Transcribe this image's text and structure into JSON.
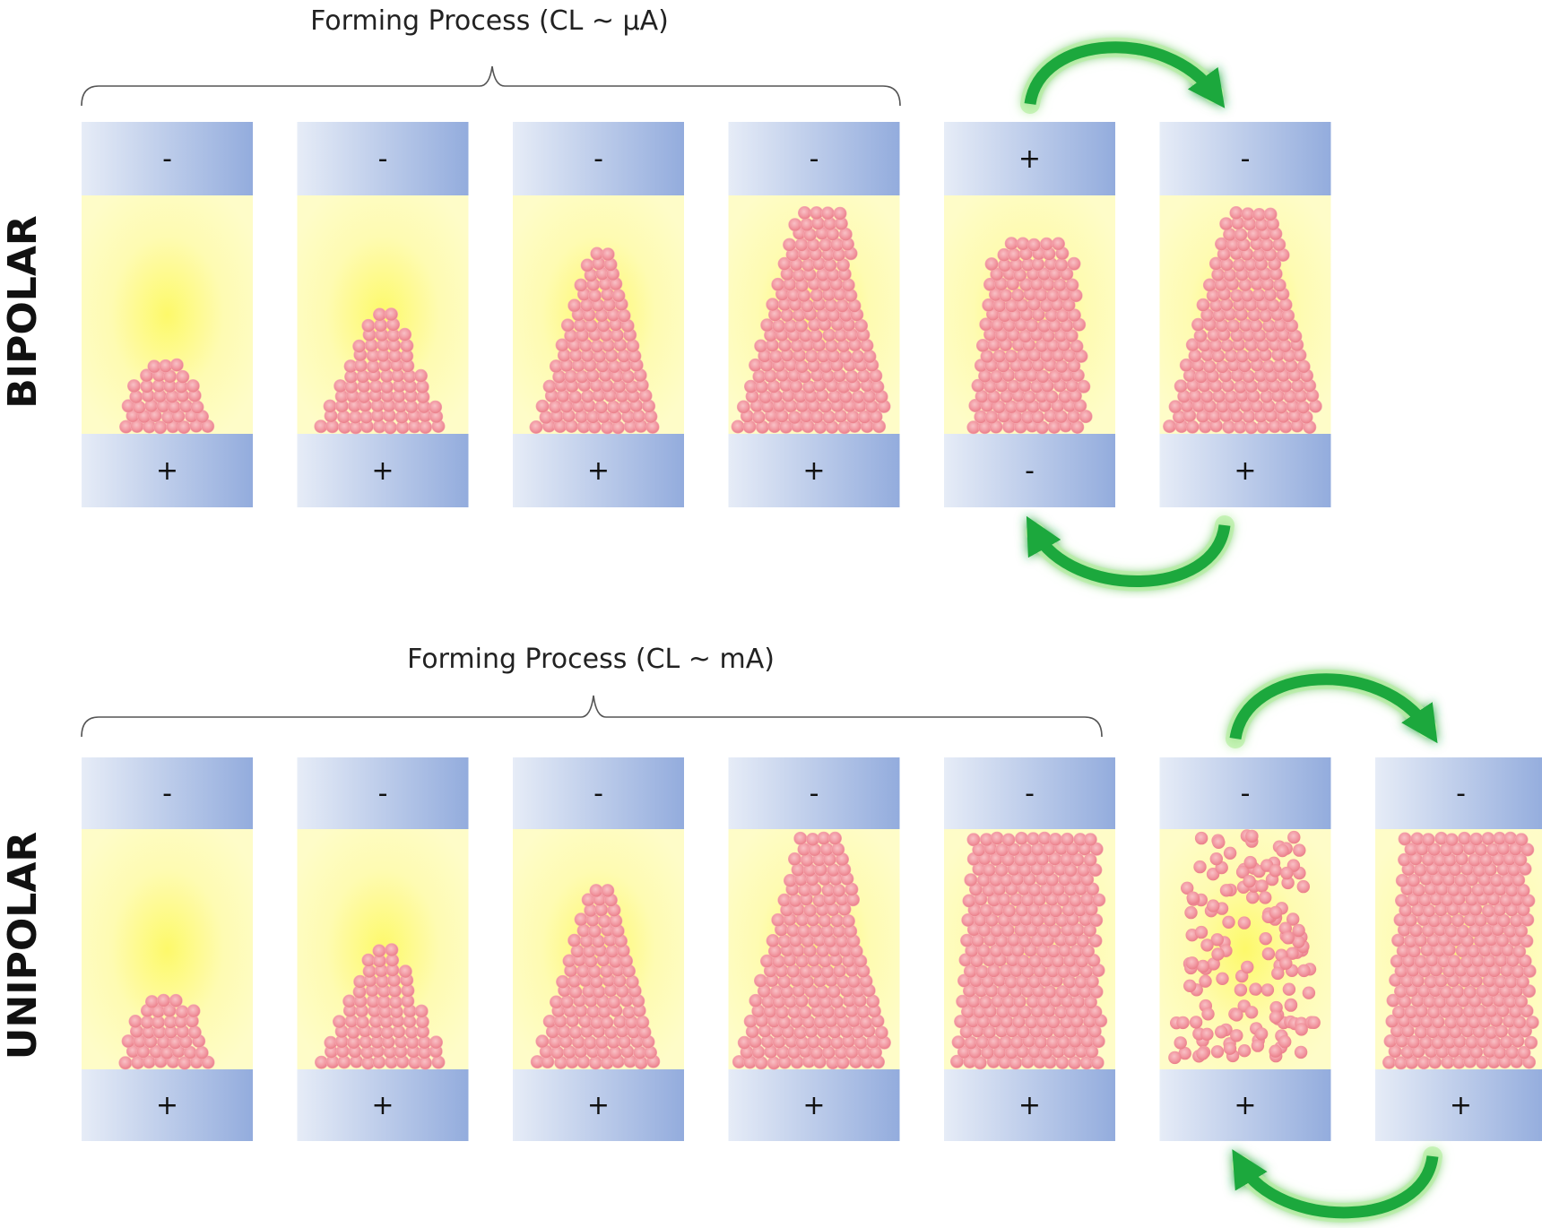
{
  "rows": [
    {
      "label": "BIPOLAR",
      "forming_label": "Forming Process  (CL ~ μA)",
      "cells": [
        {
          "top_sign": "-",
          "bottom_sign": "+",
          "shape": "mound-small"
        },
        {
          "top_sign": "-",
          "bottom_sign": "+",
          "shape": "cone-medium"
        },
        {
          "top_sign": "-",
          "bottom_sign": "+",
          "shape": "cone-tall"
        },
        {
          "top_sign": "-",
          "bottom_sign": "+",
          "shape": "filament-full"
        },
        {
          "top_sign": "+",
          "bottom_sign": "-",
          "shape": "filament-ruptured"
        },
        {
          "top_sign": "-",
          "bottom_sign": "+",
          "shape": "filament-full"
        }
      ],
      "cycle_arrows": [
        "curved-arrow-icon",
        "curved-arrow-icon"
      ]
    },
    {
      "label": "UNIPOLAR",
      "forming_label": "Forming Process  (CL ~ mA)",
      "cells": [
        {
          "top_sign": "-",
          "bottom_sign": "+",
          "shape": "mound-small"
        },
        {
          "top_sign": "-",
          "bottom_sign": "+",
          "shape": "cone-medium"
        },
        {
          "top_sign": "-",
          "bottom_sign": "+",
          "shape": "cone-tall"
        },
        {
          "top_sign": "-",
          "bottom_sign": "+",
          "shape": "filament-full"
        },
        {
          "top_sign": "-",
          "bottom_sign": "+",
          "shape": "block-wide"
        },
        {
          "top_sign": "-",
          "bottom_sign": "+",
          "shape": "scattered"
        },
        {
          "top_sign": "-",
          "bottom_sign": "+",
          "shape": "block-wide"
        }
      ],
      "cycle_arrows": [
        "curved-arrow-icon",
        "curved-arrow-icon"
      ]
    }
  ],
  "colors": {
    "electrode_light": "#e4eaf6",
    "electrode_dark": "#93acdd",
    "oxide_glow": "#fdfa7c",
    "oxide_base": "#fefcc4",
    "particle": "#f08a94",
    "particle_core": "#f7b0b6",
    "arrow": "#1ea83c",
    "arrow_glow": "#b6f0a2"
  }
}
